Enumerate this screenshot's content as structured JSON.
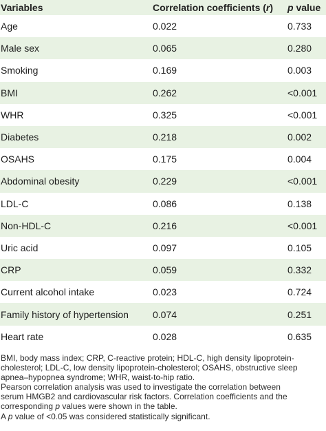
{
  "table": {
    "headers": {
      "variables": "Variables",
      "corr_prefix": "Correlation coefficients (",
      "corr_symbol": "r",
      "corr_suffix": ")",
      "p_symbol": "p",
      "p_suffix": " value"
    },
    "rows": [
      {
        "variable": "Age",
        "r": "0.022",
        "p": "0.733"
      },
      {
        "variable": "Male sex",
        "r": "0.065",
        "p": "0.280"
      },
      {
        "variable": "Smoking",
        "r": "0.169",
        "p": "0.003"
      },
      {
        "variable": "BMI",
        "r": "0.262",
        "p": "<0.001"
      },
      {
        "variable": "WHR",
        "r": "0.325",
        "p": "<0.001"
      },
      {
        "variable": "Diabetes",
        "r": "0.218",
        "p": "0.002"
      },
      {
        "variable": "OSAHS",
        "r": "0.175",
        "p": "0.004"
      },
      {
        "variable": "Abdominal obesity",
        "r": "0.229",
        "p": "<0.001"
      },
      {
        "variable": "LDL-C",
        "r": "0.086",
        "p": "0.138"
      },
      {
        "variable": "Non-HDL-C",
        "r": "0.216",
        "p": "<0.001"
      },
      {
        "variable": "Uric acid",
        "r": "0.097",
        "p": "0.105"
      },
      {
        "variable": "CRP",
        "r": "0.059",
        "p": "0.332"
      },
      {
        "variable": "Current alcohol intake",
        "r": "0.023",
        "p": "0.724"
      },
      {
        "variable": "Family history of hypertension",
        "r": "0.074",
        "p": "0.251"
      },
      {
        "variable": "Heart rate",
        "r": "0.028",
        "p": "0.635"
      }
    ]
  },
  "notes": {
    "line1": "BMI, body mass index; CRP, C-reactive protein; HDL-C, high density lipoprotein-",
    "line2": "cholesterol; LDL-C, low density lipoprotein-cholesterol; OSAHS, obstructive sleep",
    "line3": "apnea–hypopnea syndrome; WHR, waist-to-hip ratio.",
    "line4": "Pearson correlation analysis was used to investigate the correlation between",
    "line5": "serum HMGB2 and cardiovascular risk factors. Correlation coefficients and the",
    "line6_before": "corresponding ",
    "line6_symbol": "p",
    "line6_after": " values were shown in the table.",
    "line7_before": "A ",
    "line7_symbol": "p",
    "line7_after": " value of <0.05 was considered statistically significant."
  },
  "colors": {
    "band": "#e8f2e3",
    "background": "#ffffff",
    "text": "#1d1d1d"
  }
}
